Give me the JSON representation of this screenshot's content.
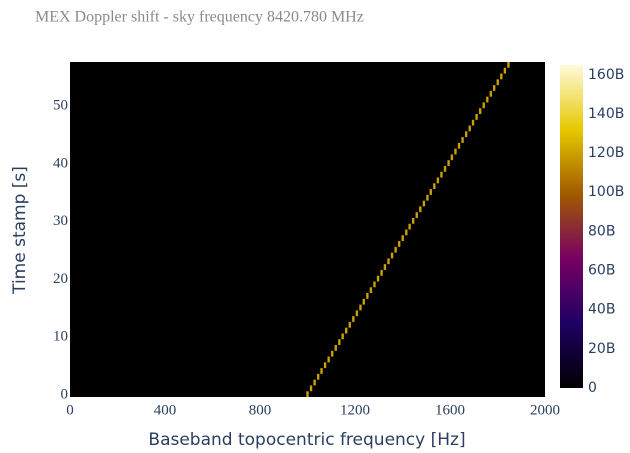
{
  "chart_data": {
    "type": "heatmap",
    "title": "MEX Doppler shift - sky frequency 8420.780 MHz",
    "x_label": "Baseband topocentric frequency [Hz]",
    "y_label": "Time stamp [s]",
    "plot_bgcolor": "#000000",
    "colorscale": [
      "#000000",
      "#1e0064",
      "#780064",
      "#a05a00",
      "#e6c800",
      "#fffadc"
    ],
    "xlim": [
      0,
      2000
    ],
    "xticks": [
      0,
      400,
      800,
      1200,
      1600,
      2000
    ],
    "ylim": [
      0,
      58
    ],
    "yticks": [
      0,
      10,
      20,
      30,
      40,
      50
    ],
    "zlim": [
      0,
      165000000000
    ],
    "zticks": [
      0,
      {
        "value": 20000000000,
        "label": "20B"
      },
      {
        "value": 40000000000,
        "label": "40B"
      },
      {
        "value": 60000000000,
        "label": "60B"
      },
      {
        "value": 80000000000,
        "label": "80B"
      },
      {
        "value": 100000000000,
        "label": "100B"
      },
      {
        "value": 120000000000,
        "label": "120B"
      },
      {
        "value": 140000000000,
        "label": "140B"
      },
      {
        "value": 160000000000,
        "label": "160B"
      }
    ],
    "y": [
      0,
      1,
      2,
      3,
      4,
      5,
      6,
      7,
      8,
      9,
      10,
      11,
      12,
      13,
      14,
      15,
      16,
      17,
      18,
      19,
      20,
      21,
      22,
      23,
      24,
      25,
      26,
      27,
      28,
      29,
      30,
      31,
      32,
      33,
      34,
      35,
      36,
      37,
      38,
      39,
      40,
      41,
      42,
      43,
      44,
      45,
      46,
      47,
      48,
      49,
      50,
      51,
      52,
      53,
      54,
      55,
      56,
      57
    ],
    "x": [
      1000,
      1015,
      1030,
      1045,
      1059,
      1074,
      1089,
      1104,
      1119,
      1134,
      1148,
      1163,
      1178,
      1193,
      1208,
      1223,
      1237,
      1252,
      1267,
      1282,
      1297,
      1312,
      1326,
      1341,
      1356,
      1371,
      1386,
      1401,
      1416,
      1430,
      1445,
      1460,
      1475,
      1490,
      1505,
      1519,
      1534,
      1549,
      1564,
      1579,
      1594,
      1608,
      1623,
      1638,
      1653,
      1668,
      1683,
      1697,
      1712,
      1727,
      1742,
      1757,
      1772,
      1786,
      1801,
      1816,
      1831,
      1846
    ],
    "z": [
      120000000000,
      120000000000,
      120000000000,
      120000000000,
      120000000000,
      120000000000,
      120000000000,
      120000000000,
      120000000000,
      120000000000,
      120000000000,
      120000000000,
      120000000000,
      120000000000,
      120000000000,
      120000000000,
      120000000000,
      120000000000,
      120000000000,
      120000000000,
      120000000000,
      120000000000,
      120000000000,
      120000000000,
      120000000000,
      120000000000,
      120000000000,
      120000000000,
      120000000000,
      120000000000,
      120000000000,
      120000000000,
      120000000000,
      120000000000,
      120000000000,
      120000000000,
      120000000000,
      120000000000,
      120000000000,
      120000000000,
      120000000000,
      120000000000,
      120000000000,
      120000000000,
      120000000000,
      120000000000,
      120000000000,
      120000000000,
      120000000000,
      120000000000,
      120000000000,
      120000000000,
      120000000000,
      120000000000,
      120000000000,
      120000000000,
      120000000000,
      120000000000
    ]
  }
}
